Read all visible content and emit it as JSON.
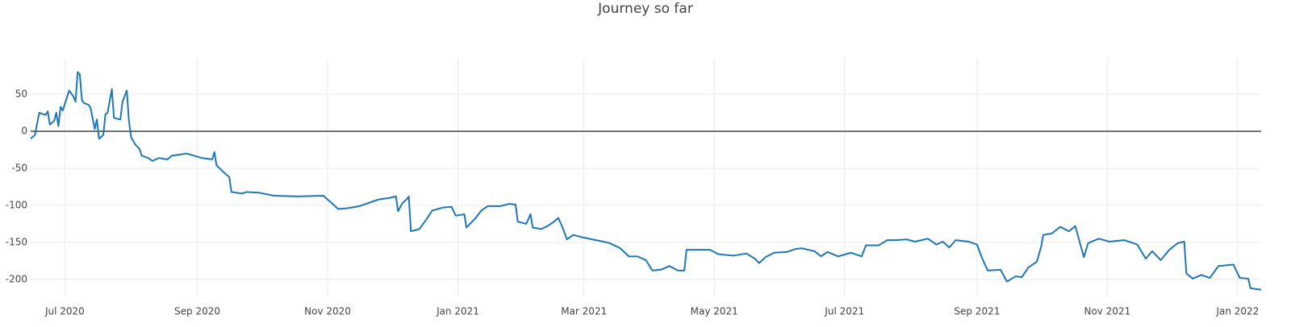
{
  "chart_data": {
    "type": "line",
    "title": "Journey so far",
    "series": [
      {
        "color": "#1f77b4",
        "x": [
          "2020-06-15",
          "2020-06-17",
          "2020-06-19",
          "2020-06-22",
          "2020-06-23",
          "2020-06-24",
          "2020-06-26",
          "2020-06-27",
          "2020-06-28",
          "2020-06-29",
          "2020-06-30",
          "2020-07-03",
          "2020-07-05",
          "2020-07-06",
          "2020-07-07",
          "2020-07-08",
          "2020-07-09",
          "2020-07-10",
          "2020-07-12",
          "2020-07-13",
          "2020-07-15",
          "2020-07-16",
          "2020-07-17",
          "2020-07-19",
          "2020-07-20",
          "2020-07-21",
          "2020-07-23",
          "2020-07-24",
          "2020-07-27",
          "2020-07-28",
          "2020-07-30",
          "2020-07-31",
          "2020-08-01",
          "2020-08-03",
          "2020-08-05",
          "2020-08-06",
          "2020-08-09",
          "2020-08-11",
          "2020-08-14",
          "2020-08-18",
          "2020-08-20",
          "2020-08-27",
          "2020-09-03",
          "2020-09-08",
          "2020-09-09",
          "2020-09-10",
          "2020-09-14",
          "2020-09-16",
          "2020-09-17",
          "2020-09-22",
          "2020-09-24",
          "2020-09-30",
          "2020-10-07",
          "2020-10-18",
          "2020-10-30",
          "2020-11-01",
          "2020-11-06",
          "2020-11-10",
          "2020-11-16",
          "2020-11-21",
          "2020-11-25",
          "2020-11-30",
          "2020-12-03",
          "2020-12-04",
          "2020-12-06",
          "2020-12-08",
          "2020-12-09",
          "2020-12-10",
          "2020-12-14",
          "2020-12-17",
          "2020-12-20",
          "2020-12-25",
          "2020-12-29",
          "2020-12-31",
          "2021-01-04",
          "2021-01-05",
          "2021-01-09",
          "2021-01-12",
          "2021-01-15",
          "2021-01-21",
          "2021-01-25",
          "2021-01-28",
          "2021-01-29",
          "2021-02-02",
          "2021-02-04",
          "2021-02-05",
          "2021-02-09",
          "2021-02-12",
          "2021-02-15",
          "2021-02-17",
          "2021-02-19",
          "2021-02-21",
          "2021-02-24",
          "2021-02-28",
          "2021-03-05",
          "2021-03-10",
          "2021-03-13",
          "2021-03-18",
          "2021-03-22",
          "2021-03-26",
          "2021-03-30",
          "2021-04-02",
          "2021-04-06",
          "2021-04-10",
          "2021-04-14",
          "2021-04-17",
          "2021-04-18",
          "2021-04-22",
          "2021-04-29",
          "2021-05-03",
          "2021-05-10",
          "2021-05-16",
          "2021-05-20",
          "2021-05-22",
          "2021-05-25",
          "2021-05-29",
          "2021-06-04",
          "2021-06-08",
          "2021-06-11",
          "2021-06-17",
          "2021-06-20",
          "2021-06-23",
          "2021-06-28",
          "2021-07-04",
          "2021-07-09",
          "2021-07-11",
          "2021-07-17",
          "2021-07-21",
          "2021-07-25",
          "2021-07-30",
          "2021-08-03",
          "2021-08-09",
          "2021-08-13",
          "2021-08-16",
          "2021-08-19",
          "2021-08-22",
          "2021-08-28",
          "2021-09-01",
          "2021-09-03",
          "2021-09-06",
          "2021-09-12",
          "2021-09-15",
          "2021-09-19",
          "2021-09-22",
          "2021-09-25",
          "2021-09-29",
          "2021-10-01",
          "2021-10-02",
          "2021-10-06",
          "2021-10-10",
          "2021-10-14",
          "2021-10-17",
          "2021-10-19",
          "2021-10-21",
          "2021-10-23",
          "2021-10-28",
          "2021-11-02",
          "2021-11-09",
          "2021-11-15",
          "2021-11-19",
          "2021-11-22",
          "2021-11-26",
          "2021-11-30",
          "2021-12-04",
          "2021-12-07",
          "2021-12-08",
          "2021-12-11",
          "2021-12-15",
          "2021-12-19",
          "2021-12-23",
          "2021-12-30",
          "2022-01-02",
          "2022-01-06",
          "2022-01-07",
          "2022-01-12"
        ],
        "values": [
          -10,
          -5,
          25,
          22,
          27,
          9,
          14,
          25,
          7,
          33,
          28,
          55,
          47,
          40,
          80,
          77,
          42,
          38,
          36,
          32,
          3,
          16,
          -10,
          -5,
          23,
          25,
          57,
          18,
          16,
          40,
          55,
          14,
          -8,
          -18,
          -24,
          -33,
          -36,
          -40,
          -36,
          -38,
          -33,
          -30,
          -36,
          -38,
          -28,
          -46,
          -57,
          -62,
          -82,
          -84,
          -82,
          -83,
          -87,
          -88,
          -87,
          -92,
          -105,
          -104,
          -101,
          -96,
          -92,
          -90,
          -88,
          -108,
          -97,
          -92,
          -88,
          -135,
          -132,
          -120,
          -107,
          -103,
          -102,
          -114,
          -112,
          -130,
          -118,
          -107,
          -101,
          -101,
          -98,
          -99,
          -122,
          -125,
          -112,
          -130,
          -132,
          -128,
          -122,
          -117,
          -130,
          -146,
          -140,
          -143,
          -146,
          -149,
          -151,
          -158,
          -169,
          -169,
          -174,
          -188,
          -187,
          -182,
          -188,
          -188,
          -160,
          -160,
          -160,
          -166,
          -168,
          -165,
          -172,
          -178,
          -170,
          -164,
          -163,
          -159,
          -158,
          -162,
          -169,
          -163,
          -169,
          -164,
          -169,
          -154,
          -154,
          -147,
          -147,
          -146,
          -149,
          -145,
          -153,
          -149,
          -157,
          -147,
          -149,
          -153,
          -169,
          -188,
          -187,
          -203,
          -196,
          -197,
          -184,
          -176,
          -156,
          -140,
          -138,
          -129,
          -135,
          -128,
          -149,
          -170,
          -151,
          -145,
          -149,
          -147,
          -153,
          -172,
          -162,
          -174,
          -160,
          -151,
          -149,
          -192,
          -199,
          -194,
          -198,
          -182,
          -180,
          -198,
          -199,
          -212,
          -214
        ]
      }
    ],
    "xlim": [
      "2020-06-15",
      "2022-01-12"
    ],
    "xticks": [
      {
        "value": "2020-07-01",
        "label": "Jul 2020"
      },
      {
        "value": "2020-09-01",
        "label": "Sep 2020"
      },
      {
        "value": "2020-11-01",
        "label": "Nov 2020"
      },
      {
        "value": "2021-01-01",
        "label": "Jan 2021"
      },
      {
        "value": "2021-03-01",
        "label": "Mar 2021"
      },
      {
        "value": "2021-05-01",
        "label": "May 2021"
      },
      {
        "value": "2021-07-01",
        "label": "Jul 2021"
      },
      {
        "value": "2021-09-01",
        "label": "Sep 2021"
      },
      {
        "value": "2021-11-01",
        "label": "Nov 2021"
      },
      {
        "value": "2022-01-01",
        "label": "Jan 2022"
      }
    ],
    "ylim": [
      -223,
      99
    ],
    "yticks": [
      -200,
      -150,
      -100,
      -50,
      0,
      50
    ],
    "grid": true,
    "zeroline": true
  }
}
